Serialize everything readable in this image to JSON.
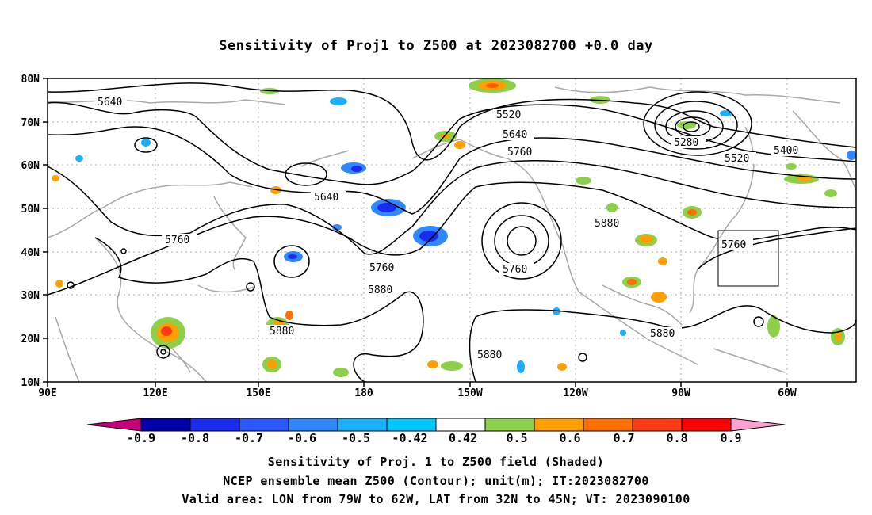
{
  "title": "Sensitivity of Proj1 to Z500 at 2023082700 +0.0 day",
  "lat_ticks": [
    "80N",
    "70N",
    "60N",
    "50N",
    "40N",
    "30N",
    "20N",
    "10N"
  ],
  "lon_ticks": [
    "90E",
    "120E",
    "150E",
    "180",
    "150W",
    "120W",
    "90W",
    "60W"
  ],
  "contour_labels": [
    "5640",
    "5520",
    "5640",
    "5760",
    "5280",
    "5400",
    "5520",
    "5640",
    "5760",
    "5880",
    "5760",
    "5760",
    "5880",
    "5880",
    "5880",
    "5880",
    "5760"
  ],
  "colorbar": {
    "labels": [
      "-0.9",
      "-0.8",
      "-0.7",
      "-0.6",
      "-0.5",
      "-0.42",
      "0.42",
      "0.5",
      "0.6",
      "0.7",
      "0.8",
      "0.9"
    ],
    "colors": [
      "#0000a8",
      "#1a2cf0",
      "#2e58ff",
      "#2f88ff",
      "#1ab0ff",
      "#00c8ff",
      "#ffffff",
      "#8cd04a",
      "#ff9f00",
      "#ff7000",
      "#ff3a10",
      "#ff0000"
    ],
    "low_end_color": "#c8007a",
    "high_end_color": "#ffa0d2"
  },
  "caption": {
    "line1": "Sensitivity of Proj. 1 to Z500 field (Shaded)",
    "line2": "NCEP ensemble mean Z500 (Contour); unit(m); IT:2023082700",
    "line3": "Valid area: LON from 79W to 62W, LAT from 32N to 45N; VT: 2023090100"
  }
}
